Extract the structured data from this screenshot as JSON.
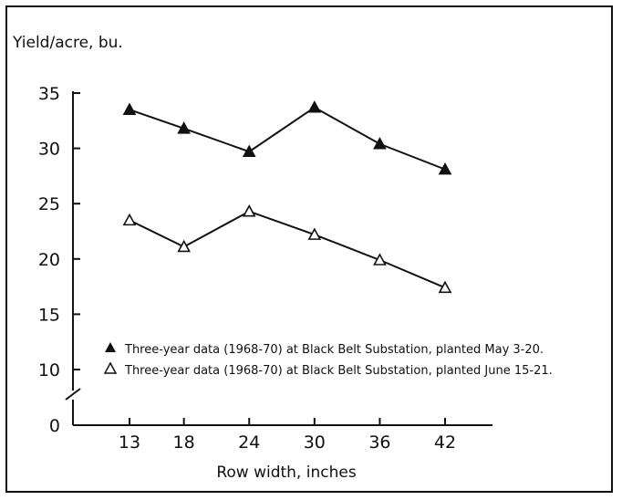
{
  "chart_data": {
    "type": "line",
    "ylabel": "Yield/acre, bu.",
    "xlabel": "Row width, inches",
    "x": [
      13,
      18,
      24,
      30,
      36,
      42
    ],
    "x_tick_labels": [
      "13",
      "18",
      "24",
      "30",
      "36",
      "42"
    ],
    "y_tick_labels": [
      "0",
      "10",
      "15",
      "20",
      "25",
      "30",
      "35"
    ],
    "y_axis_break": "between 0 and 10",
    "ylim": [
      0,
      35
    ],
    "grid": false,
    "legend_position": "lower-left inside plot",
    "series": [
      {
        "name": "Three-year data (1968-70) at Black Belt Substation, planted May 3-20.",
        "marker": "filled-triangle",
        "values": [
          33.5,
          31.8,
          29.7,
          33.7,
          30.4,
          28.1
        ]
      },
      {
        "name": "Three-year data (1968-70) at Black Belt Substation, planted June 15-21.",
        "marker": "open-triangle",
        "values": [
          23.5,
          21.1,
          24.3,
          22.2,
          19.9,
          17.4
        ]
      }
    ]
  }
}
